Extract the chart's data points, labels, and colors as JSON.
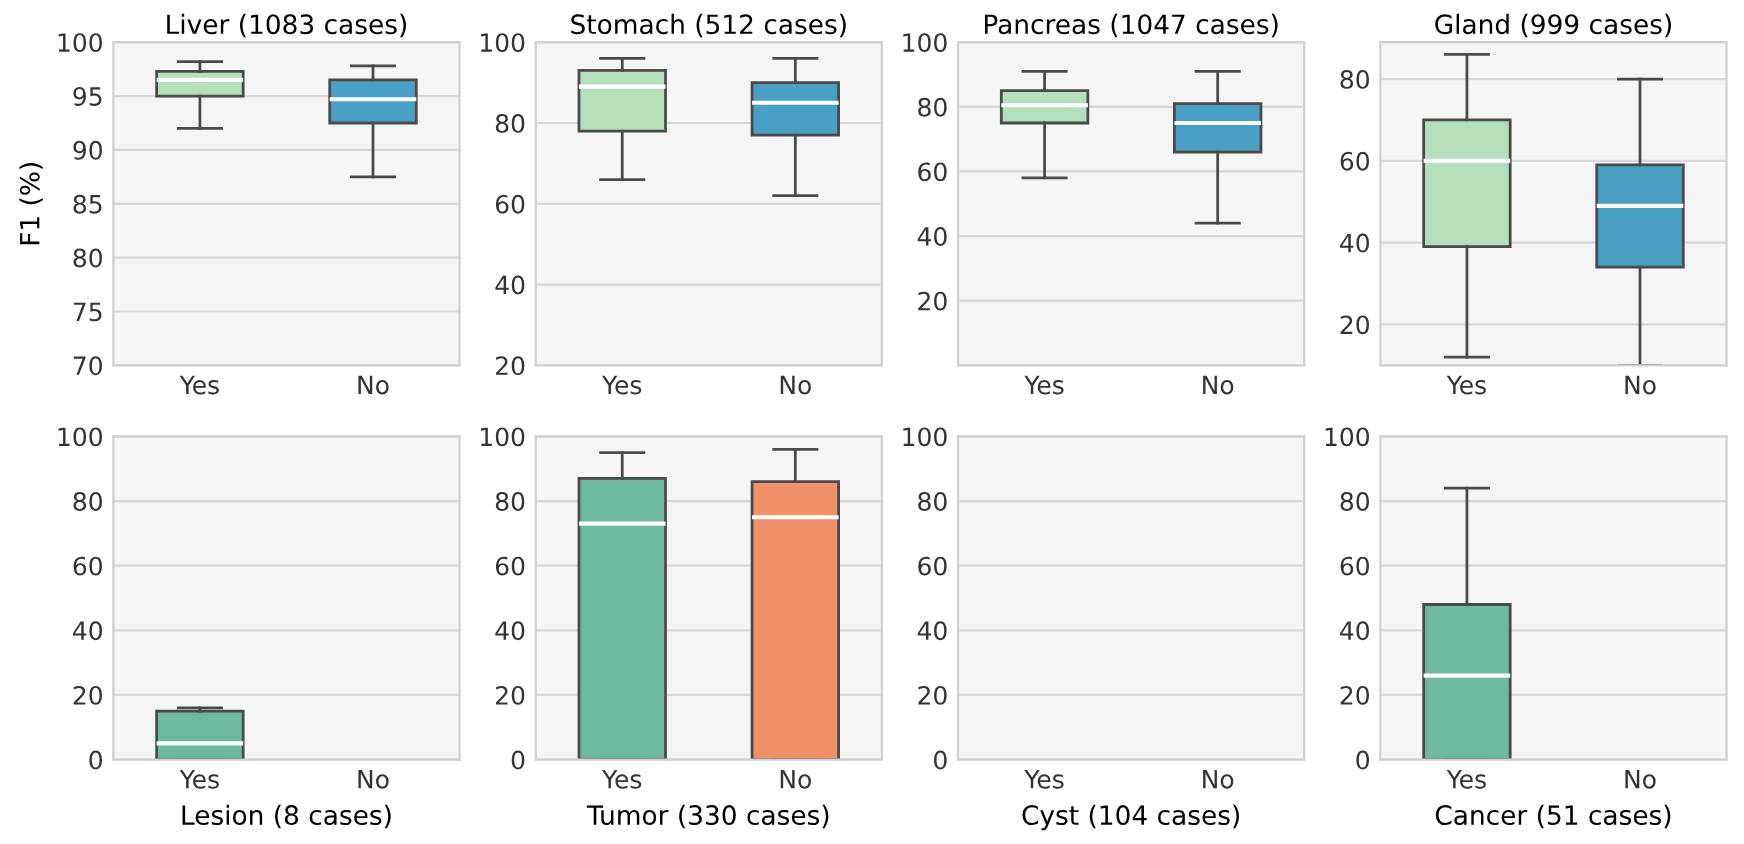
{
  "chart_data": [
    {
      "type": "box",
      "title": "Liver (1083 cases)",
      "ylabel": "F1 (%)",
      "categories": [
        "Yes",
        "No"
      ],
      "colors": [
        "#b5dfba",
        "#4a9fc4"
      ],
      "ylim": [
        70,
        100
      ],
      "yticks": [
        70,
        75,
        80,
        85,
        90,
        95,
        100
      ],
      "grid": "y",
      "boxes": [
        {
          "low": 92,
          "q1": 95,
          "median": 96.5,
          "q3": 97.3,
          "high": 98.2
        },
        {
          "low": 87.5,
          "q1": 92.5,
          "median": 94.7,
          "q3": 96.5,
          "high": 97.8
        }
      ]
    },
    {
      "type": "box",
      "title": "Stomach (512 cases)",
      "categories": [
        "Yes",
        "No"
      ],
      "colors": [
        "#b5dfba",
        "#4a9fc4"
      ],
      "ylim": [
        20,
        100
      ],
      "yticks": [
        20,
        40,
        60,
        80,
        100
      ],
      "grid": "y",
      "boxes": [
        {
          "low": 66,
          "q1": 78,
          "median": 89,
          "q3": 93,
          "high": 96
        },
        {
          "low": 62,
          "q1": 77,
          "median": 85,
          "q3": 90,
          "high": 96
        }
      ]
    },
    {
      "type": "box",
      "title": "Pancreas (1047 cases)",
      "categories": [
        "Yes",
        "No"
      ],
      "colors": [
        "#b5dfba",
        "#4a9fc4"
      ],
      "ylim": [
        0,
        100
      ],
      "yticks": [
        20,
        40,
        60,
        80,
        100
      ],
      "grid": "y",
      "boxes": [
        {
          "low": 58,
          "q1": 75,
          "median": 80.5,
          "q3": 85,
          "high": 91
        },
        {
          "low": 44,
          "q1": 66,
          "median": 75,
          "q3": 81,
          "high": 91
        }
      ]
    },
    {
      "type": "box",
      "title": "Gland (999 cases)",
      "categories": [
        "Yes",
        "No"
      ],
      "colors": [
        "#b5dfba",
        "#4a9fc4"
      ],
      "ylim": [
        10,
        89
      ],
      "yticks": [
        20,
        40,
        60,
        80
      ],
      "grid": "y",
      "boxes": [
        {
          "low": 12,
          "q1": 39,
          "median": 60,
          "q3": 70,
          "high": 86
        },
        {
          "low": 10,
          "q1": 34,
          "median": 49,
          "q3": 59,
          "high": 80
        }
      ]
    },
    {
      "type": "box",
      "xlabel": "Lesion (8 cases)",
      "categories": [
        "Yes",
        "No"
      ],
      "colors": [
        "#6db89e",
        "#f0916b"
      ],
      "ylim": [
        0,
        100
      ],
      "yticks": [
        0,
        20,
        40,
        60,
        80,
        100
      ],
      "grid": "y",
      "boxes": [
        {
          "low": 0,
          "q1": 0,
          "median": 5,
          "q3": 15,
          "high": 16
        },
        null
      ]
    },
    {
      "type": "box",
      "xlabel": "Tumor (330 cases)",
      "categories": [
        "Yes",
        "No"
      ],
      "colors": [
        "#6db89e",
        "#f0916b"
      ],
      "ylim": [
        0,
        100
      ],
      "yticks": [
        0,
        20,
        40,
        60,
        80,
        100
      ],
      "grid": "y",
      "boxes": [
        {
          "low": 0,
          "q1": 0,
          "median": 73,
          "q3": 87,
          "high": 95
        },
        {
          "low": 0,
          "q1": 0,
          "median": 75,
          "q3": 86,
          "high": 96
        }
      ]
    },
    {
      "type": "box",
      "xlabel": "Cyst (104 cases)",
      "categories": [
        "Yes",
        "No"
      ],
      "ylim": [
        0,
        100
      ],
      "yticks": [
        0,
        20,
        40,
        60,
        80,
        100
      ],
      "grid": "y",
      "boxes": [
        null,
        null
      ]
    },
    {
      "type": "box",
      "xlabel": "Cancer (51 cases)",
      "categories": [
        "Yes",
        "No"
      ],
      "colors": [
        "#6db89e",
        "#f0916b"
      ],
      "ylim": [
        0,
        100
      ],
      "yticks": [
        0,
        20,
        40,
        60,
        80,
        100
      ],
      "grid": "y",
      "boxes": [
        {
          "low": 0,
          "q1": 0,
          "median": 26,
          "q3": 48,
          "high": 84
        },
        null
      ]
    }
  ]
}
